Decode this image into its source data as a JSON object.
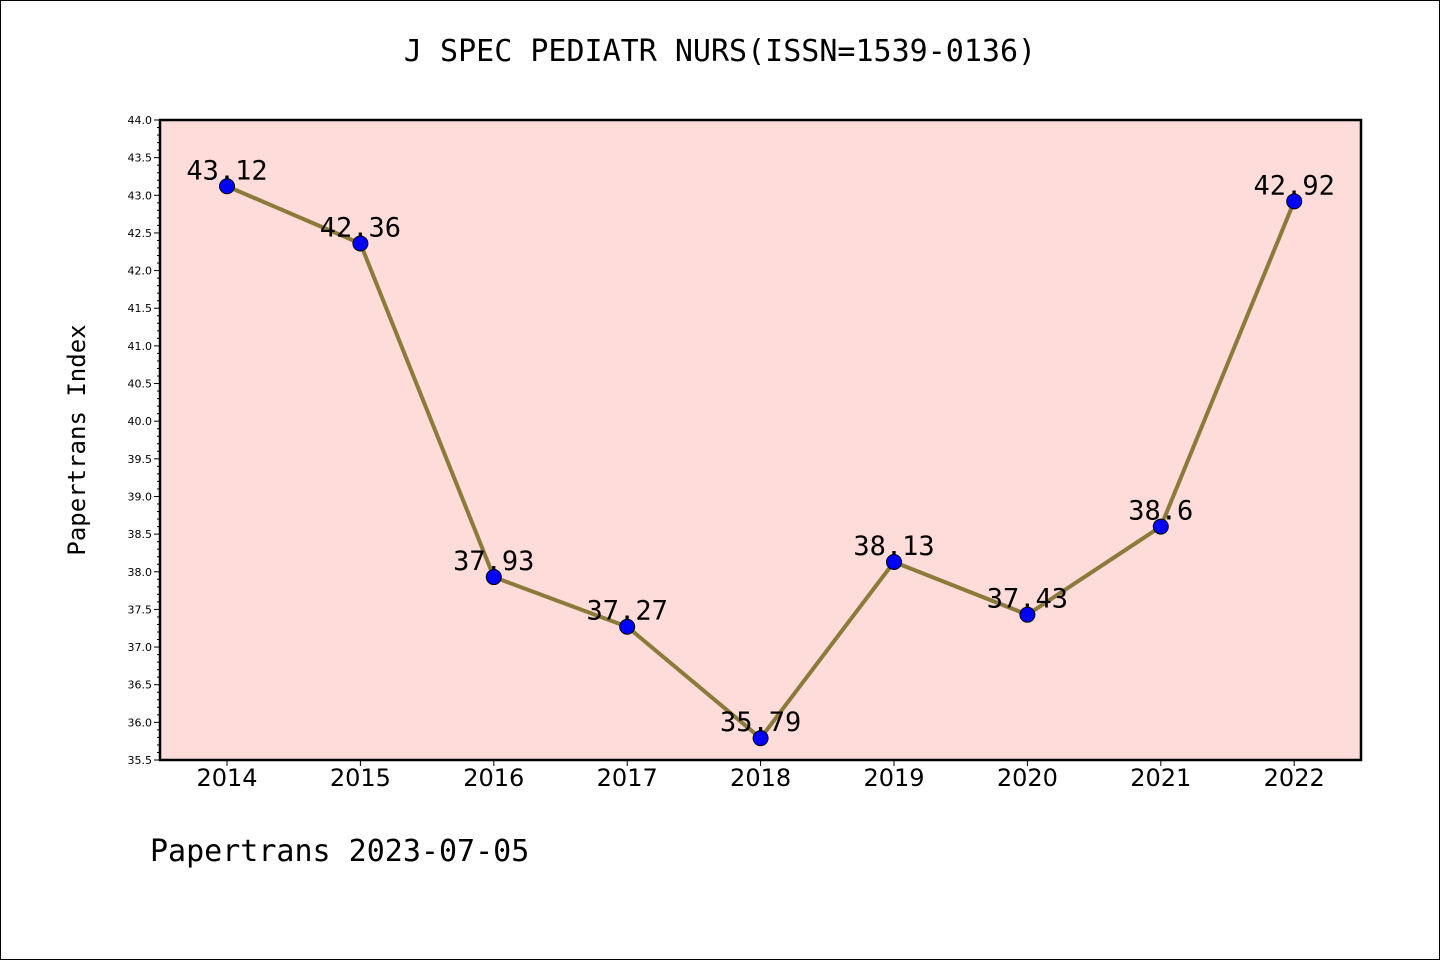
{
  "page": {
    "title": "J SPEC PEDIATR NURS(ISSN=1539-0136)",
    "footer": "Papertrans 2023-07-05"
  },
  "chart_data": {
    "type": "line",
    "title": "J SPEC PEDIATR NURS(ISSN=1539-0136)",
    "xlabel": "",
    "ylabel": "Papertrans Index",
    "categories": [
      "2014",
      "2015",
      "2016",
      "2017",
      "2018",
      "2019",
      "2020",
      "2021",
      "2022"
    ],
    "values": [
      43.12,
      42.36,
      37.93,
      37.27,
      35.79,
      38.13,
      37.43,
      38.6,
      42.92
    ],
    "data_labels": [
      "43.12",
      "42.36",
      "37.93",
      "37.27",
      "35.79",
      "38.13",
      "37.43",
      "38.6",
      "42.92"
    ],
    "ylim": [
      35.5,
      44.0
    ],
    "ytick_step": 0.5,
    "grid": false,
    "legend": "none",
    "colors": {
      "plot_background": "#fddcda",
      "line": "#8b7a3a",
      "marker": "#0000ff",
      "axes": "#000000"
    }
  }
}
